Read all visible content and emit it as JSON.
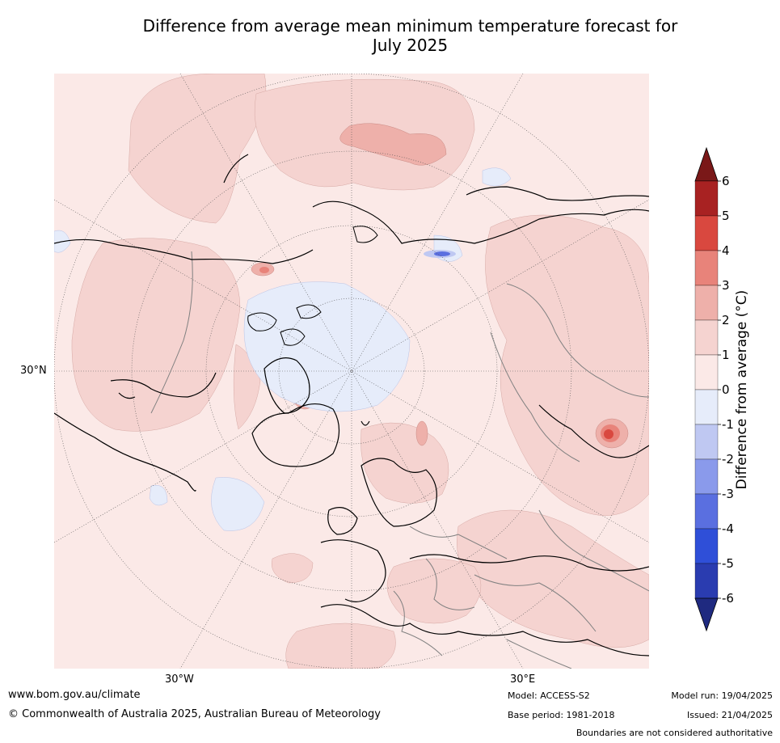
{
  "title_line1": "Difference from average mean minimum temperature forecast for",
  "title_line2": "July 2025",
  "map": {
    "projection": "north-polar-stereographic",
    "lat_label": "30°N",
    "lon_labels": [
      "30°W",
      "30°E"
    ],
    "ocean_color": "#fbe9e7",
    "land_border_color": "#000000",
    "country_border_color": "#808080"
  },
  "colorbar": {
    "title": "Difference from average (°C)",
    "tick_labels": [
      "6",
      "5",
      "4",
      "3",
      "2",
      "1",
      "0",
      "-1",
      "-2",
      "-3",
      "-4",
      "-5",
      "-6"
    ],
    "bin_colors_top_to_bottom": [
      "#a82222",
      "#d9483f",
      "#e8837a",
      "#eeb0aa",
      "#f5d3d0",
      "#fbe9e7",
      "#e6ecfa",
      "#bfc8f2",
      "#8a9aeb",
      "#5a6fe0",
      "#2f4fd8",
      "#2a3cb0"
    ],
    "over_color": "#7a1818",
    "under_color": "#1f2a80"
  },
  "footer": {
    "url": "www.bom.gov.au/climate",
    "copyright": "© Commonwealth of Australia 2025, Australian Bureau of Meteorology",
    "model": "Model: ACCESS-S2",
    "base_period": "Base period: 1981-2018",
    "model_run": "Model run: 19/04/2025",
    "issued": "Issued: 21/04/2025",
    "boundaries": "Boundaries are not considered authoritative"
  }
}
